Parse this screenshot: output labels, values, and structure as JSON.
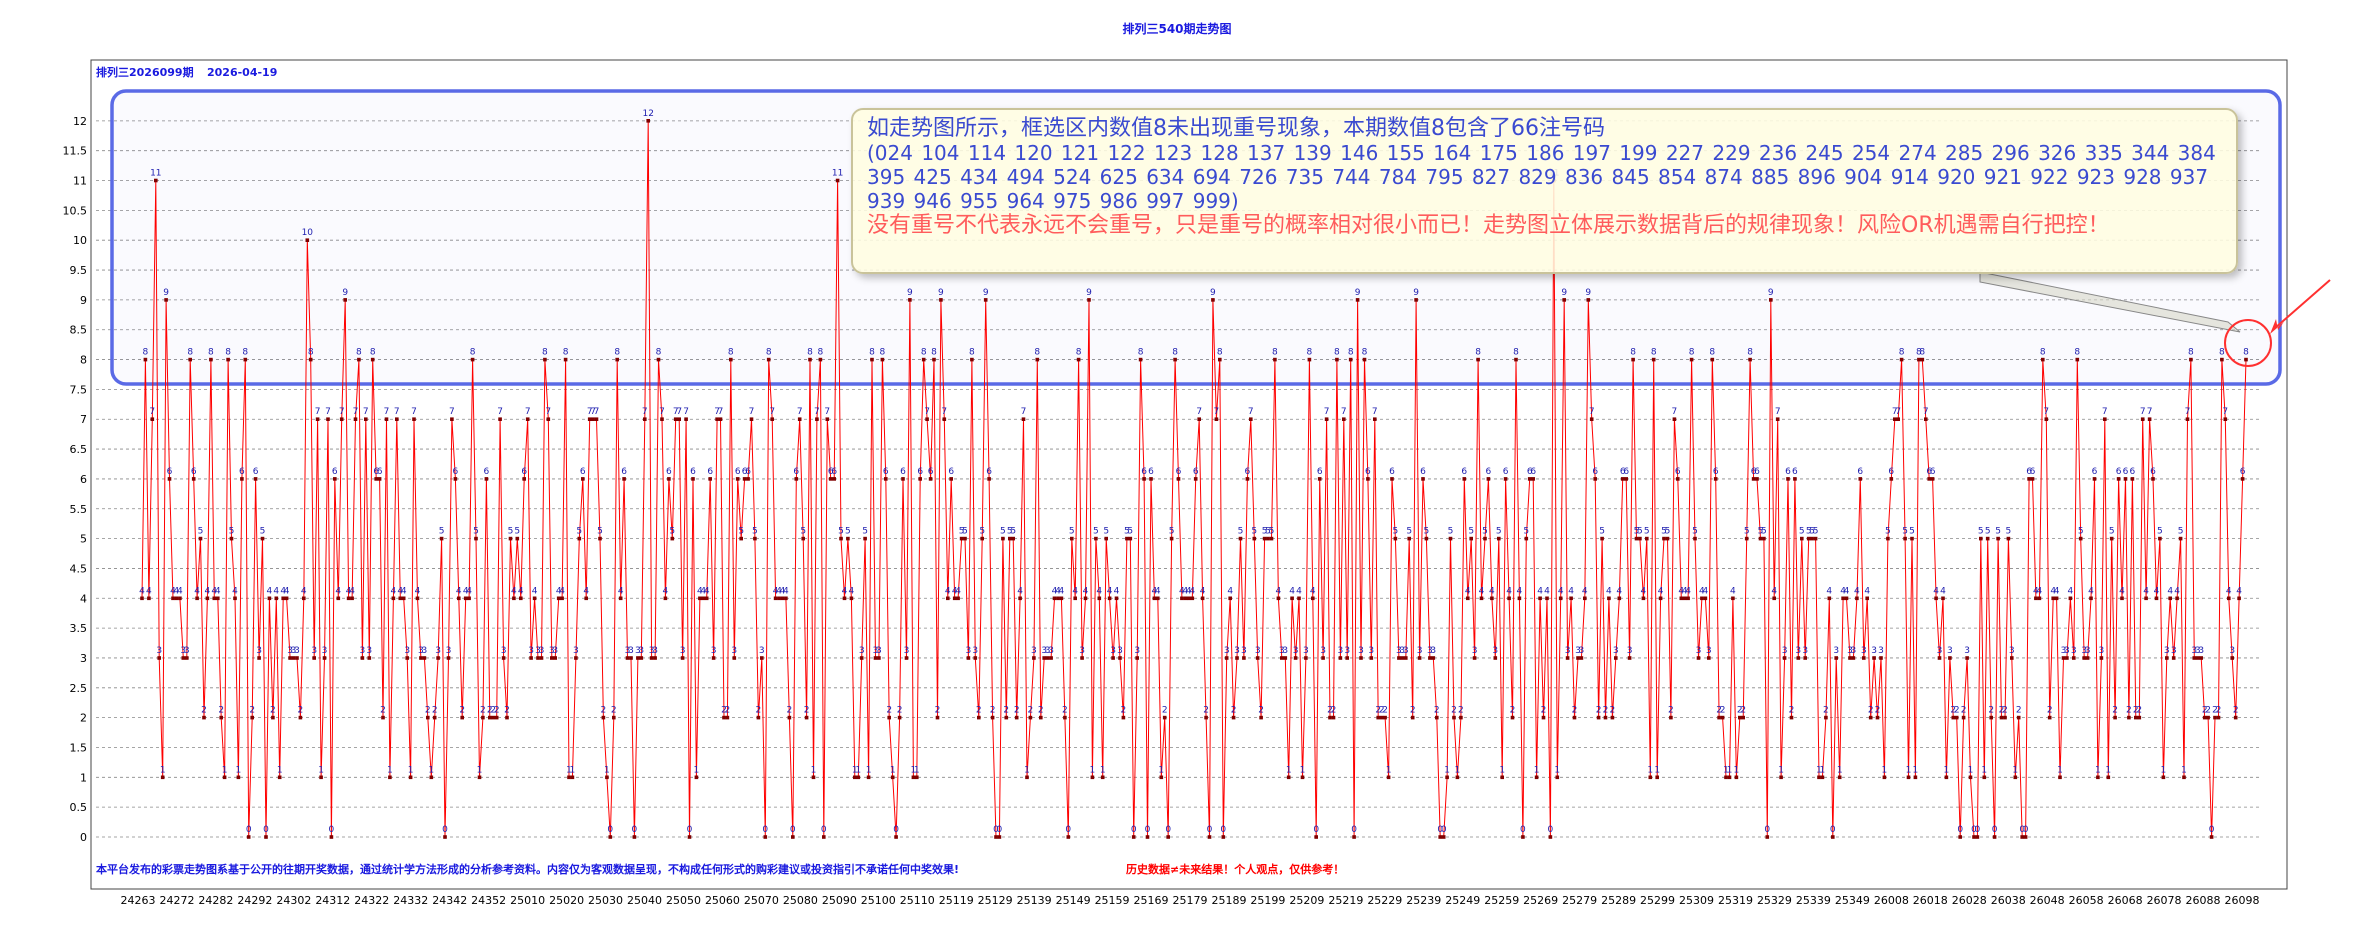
{
  "page": {
    "title": "排列三540期走势图",
    "subtitle_issue": "排列三2026099期",
    "subtitle_date": "2026-04-19"
  },
  "annotation": {
    "headline": "如走势图所示，框选区内数值8未出现重号现象，本期数值8包含了66注号码",
    "codes": "(024  104  114  120  121  122  123  128  137  139  146  155  164  175  186  197  199  227  229  236  245  254  274  285  296  326  335  344  384  395  425  434  494  524  625  634  694  726  735  744  784  795  827  829  836  845  854  874  885  896  904  914  920  921  922  923  928  937  939  946  955  964  975  986  997  999)",
    "warning": "没有重号不代表永远不会重号，只是重号的概率相对很小而已！走势图立体展示数据背后的规律现象！风险OR机遇需自行把控！"
  },
  "footer": {
    "blue_text": "本平台发布的彩票走势图系基于公开的往期开奖数据，通过统计学方法形成的分析参考资料。内容仅为客观数据呈现，不构成任何形式的购彩建议或投资指引不承诺任何中奖效果!",
    "red_text": "历史数据≠未来结果！个人观点，仅供参考！"
  },
  "colors": {
    "line": "#ff0000",
    "point": "#800000",
    "label": "#2020b0",
    "frame": "#5a6ae6",
    "title": "#1a1adf",
    "grid": "#888888",
    "arrow": "#ff3030"
  },
  "chart_data": {
    "type": "line",
    "title": "排列三540期走势图",
    "ylim": [
      0,
      12.5
    ],
    "yticks": [
      0,
      0.5,
      1,
      1.5,
      2,
      2.5,
      3,
      3.5,
      4,
      4.5,
      5,
      5.5,
      6,
      6.5,
      7,
      7.5,
      8,
      8.5,
      9,
      9.5,
      10,
      10.5,
      11,
      11.5,
      12
    ],
    "grid": true,
    "highlight_range": [
      7.5,
      12.5
    ],
    "x_tick_labels": [
      "24263",
      "24272",
      "24282",
      "24292",
      "24302",
      "24312",
      "24322",
      "24332",
      "24342",
      "24352",
      "25010",
      "25020",
      "25030",
      "25040",
      "25050",
      "25060",
      "25070",
      "25080",
      "25090",
      "25100",
      "25110",
      "25119",
      "25129",
      "25139",
      "25149",
      "25159",
      "25169",
      "25179",
      "25189",
      "25199",
      "25209",
      "25219",
      "25229",
      "25239",
      "25249",
      "25259",
      "25269",
      "25279",
      "25289",
      "25299",
      "25309",
      "25319",
      "25329",
      "25339",
      "25349",
      "26008",
      "26018",
      "26028",
      "26038",
      "26048",
      "26058",
      "26068",
      "26078",
      "26088",
      "26098"
    ],
    "values": [
      4,
      8,
      4,
      7,
      11,
      3,
      1,
      9,
      6,
      4,
      4,
      4,
      3,
      3,
      8,
      6,
      4,
      5,
      2,
      4,
      8,
      4,
      4,
      2,
      1,
      8,
      5,
      4,
      1,
      6,
      8,
      0,
      2,
      6,
      3,
      5,
      0,
      4,
      2,
      4,
      1,
      4,
      4,
      3,
      3,
      3,
      2,
      4,
      10,
      8,
      3,
      7,
      1,
      3,
      7,
      0,
      6,
      4,
      7,
      9,
      4,
      4,
      7,
      8,
      3,
      7,
      3,
      8,
      6,
      6,
      2,
      7,
      1,
      4,
      7,
      4,
      4,
      3,
      1,
      7,
      4,
      3,
      3,
      2,
      1,
      2,
      3,
      5,
      0,
      3,
      7,
      6,
      4,
      2,
      4,
      4,
      8,
      5,
      1,
      2,
      6,
      2,
      2,
      2,
      7,
      3,
      2,
      5,
      4,
      5,
      4,
      6,
      7,
      3,
      4,
      3,
      3,
      8,
      7,
      3,
      3,
      4,
      4,
      8,
      1,
      1,
      3,
      5,
      6,
      4,
      7,
      7,
      7,
      5,
      2,
      1,
      0,
      2,
      8,
      4,
      6,
      3,
      3,
      0,
      3,
      3,
      7,
      12,
      3,
      3,
      8,
      7,
      4,
      6,
      5,
      7,
      7,
      3,
      7,
      0,
      6,
      1,
      4,
      4,
      4,
      6,
      3,
      7,
      7,
      2,
      2,
      8,
      3,
      6,
      5,
      6,
      6,
      7,
      5,
      2,
      3,
      0,
      8,
      7,
      4,
      4,
      4,
      4,
      2,
      0,
      6,
      7,
      5,
      2,
      8,
      1,
      7,
      8,
      0,
      7,
      6,
      6,
      11,
      5,
      4,
      5,
      4,
      1,
      1,
      3,
      5,
      1,
      8,
      3,
      3,
      8,
      6,
      2,
      1,
      0,
      2,
      6,
      3,
      9,
      1,
      1,
      6,
      8,
      7,
      6,
      8,
      2,
      9,
      7,
      4,
      6,
      4,
      4,
      5,
      5,
      3,
      8,
      3,
      2,
      5,
      9,
      6,
      2,
      0,
      0,
      5,
      2,
      5,
      5,
      2,
      4,
      7,
      1,
      2,
      3,
      8,
      2,
      3,
      3,
      3,
      4,
      4,
      4,
      2,
      0,
      5,
      4,
      8,
      3,
      4,
      9,
      1,
      5,
      4,
      1,
      5,
      4,
      3,
      4,
      3,
      2,
      5,
      5,
      0,
      3,
      8,
      6,
      0,
      6,
      4,
      4,
      1,
      2,
      0,
      5,
      8,
      6,
      4,
      4,
      4,
      4,
      6,
      7,
      4,
      2,
      0,
      9,
      7,
      8,
      0,
      3,
      4,
      2,
      3,
      5,
      3,
      6,
      7,
      5,
      3,
      2,
      5,
      5,
      5,
      8,
      4,
      3,
      3,
      1,
      4,
      3,
      4,
      1,
      3,
      8,
      4,
      0,
      6,
      3,
      7,
      2,
      2,
      8,
      3,
      7,
      3,
      8,
      0,
      9,
      3,
      8,
      6,
      3,
      7,
      2,
      2,
      2,
      1,
      6,
      5,
      3,
      3,
      3,
      5,
      2,
      9,
      3,
      6,
      5,
      3,
      3,
      2,
      0,
      0,
      1,
      5,
      2,
      1,
      2,
      6,
      4,
      5,
      3,
      8,
      4,
      5,
      6,
      4,
      3,
      5,
      1,
      6,
      4,
      2,
      8,
      4,
      0,
      5,
      6,
      6,
      1,
      4,
      2,
      4,
      0,
      11,
      1,
      4,
      9,
      3,
      4,
      2,
      3,
      3,
      4,
      9,
      7,
      6,
      2,
      5,
      2,
      4,
      2,
      3,
      4,
      6,
      6,
      3,
      8,
      5,
      5,
      4,
      5,
      1,
      8,
      1,
      4,
      5,
      5,
      2,
      7,
      6,
      4,
      4,
      4,
      8,
      5,
      3,
      4,
      4,
      3,
      8,
      6,
      2,
      2,
      1,
      1,
      4,
      1,
      2,
      2,
      5,
      8,
      6,
      6,
      5,
      5,
      0,
      9,
      4,
      7,
      1,
      3,
      6,
      2,
      6,
      3,
      5,
      3,
      5,
      5,
      5,
      1,
      1,
      2,
      4,
      0,
      3,
      1,
      4,
      4,
      3,
      3,
      4,
      6,
      3,
      4,
      2,
      3,
      2,
      3,
      1,
      5,
      6,
      7,
      7,
      8,
      5,
      1,
      5,
      1,
      8,
      8,
      7,
      6,
      6,
      4,
      3,
      4,
      1,
      3,
      2,
      2,
      0,
      2,
      3,
      1,
      0,
      0,
      5,
      1,
      5,
      2,
      0,
      5,
      2,
      2,
      5,
      3,
      1,
      2,
      0,
      0,
      6,
      6,
      4,
      4,
      8,
      7,
      2,
      4,
      4,
      1,
      3,
      3,
      4,
      3,
      8,
      5,
      3,
      3,
      4,
      6,
      1,
      3,
      7,
      1,
      5,
      2,
      6,
      4,
      6,
      2,
      6,
      2,
      2,
      7,
      4,
      7,
      6,
      4,
      5,
      1,
      3,
      4,
      3,
      4,
      5,
      1,
      7,
      8,
      3,
      3,
      3,
      2,
      2,
      0,
      2,
      2,
      8,
      7,
      4,
      3,
      2,
      4,
      6,
      8
    ]
  }
}
